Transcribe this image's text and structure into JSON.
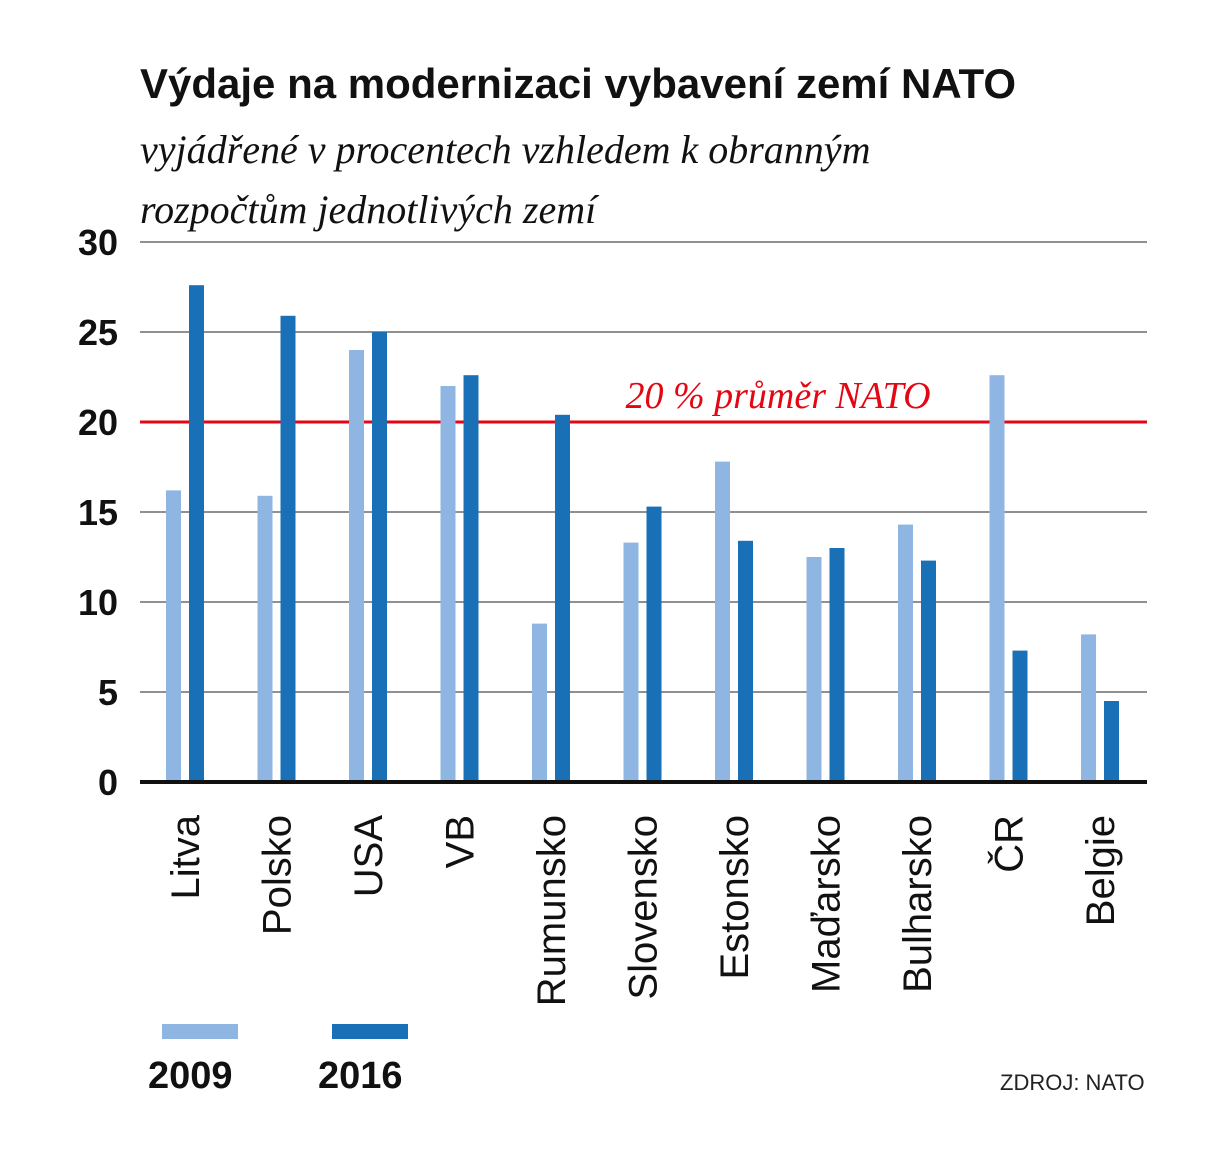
{
  "chart_data": {
    "type": "bar",
    "title": "Výdaje na modernizaci vybavení zemí NATO",
    "subtitle_lines": [
      "vyjádřené v procentech vzhledem k obranným",
      "rozpočtům jednotlivých zemí"
    ],
    "categories": [
      "Litva",
      "Polsko",
      "USA",
      "VB",
      "Rumunsko",
      "Slovensko",
      "Estonsko",
      "Maďarsko",
      "Bulharsko",
      "ČR",
      "Belgie"
    ],
    "series": [
      {
        "name": "2009",
        "color": "#8fb6e2",
        "values": [
          16.2,
          15.9,
          24.0,
          22.0,
          8.8,
          13.3,
          17.8,
          12.5,
          14.3,
          22.6,
          8.2
        ]
      },
      {
        "name": "2016",
        "color": "#1970b6",
        "values": [
          27.6,
          25.9,
          25.0,
          22.6,
          20.4,
          15.3,
          13.4,
          13.0,
          12.3,
          7.3,
          4.5
        ]
      }
    ],
    "ylim": [
      0,
      30
    ],
    "yticks": [
      0,
      5,
      10,
      15,
      20,
      25,
      30
    ],
    "reference_line": {
      "value": 20,
      "label": "20 % průměr NATO",
      "color": "#e30613"
    },
    "grid": true,
    "legend_position": "bottom-left",
    "source": "ZDROJ: NATO"
  }
}
